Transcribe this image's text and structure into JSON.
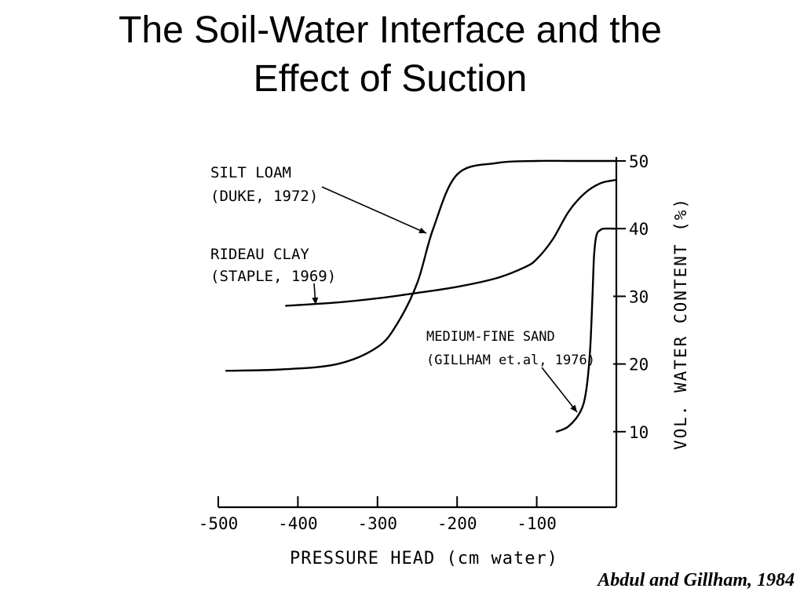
{
  "slide": {
    "title_line1": "The Soil-Water Interface and  the",
    "title_line2": "Effect of Suction",
    "citation": "Abdul and Gillham, 1984"
  },
  "chart_data": {
    "type": "line",
    "xlabel": "PRESSURE HEAD (cm water)",
    "ylabel": "VOL. WATER CONTENT (%)",
    "xlim": [
      -500,
      0
    ],
    "ylim": [
      0,
      50
    ],
    "x_ticks": [
      -500,
      -400,
      -300,
      -200,
      -100
    ],
    "x_tick_labels": [
      "-500",
      "-400",
      "-300",
      "-200",
      "-100"
    ],
    "y_ticks": [
      10,
      20,
      30,
      40,
      50
    ],
    "y_tick_labels": [
      "10",
      "20",
      "30",
      "40",
      "50"
    ],
    "grid": false,
    "legend": "none",
    "series": [
      {
        "label_lines": [
          "SILT LOAM",
          "(DUKE, 1972)"
        ],
        "x": [
          -490,
          -420,
          -350,
          -300,
          -275,
          -250,
          -230,
          -200,
          -150,
          -100,
          -50,
          0
        ],
        "y": [
          19,
          19.2,
          20,
          22.5,
          26,
          32,
          40,
          48,
          49.7,
          50,
          50,
          50
        ]
      },
      {
        "label_lines": [
          "RIDEAU CLAY",
          "(STAPLE, 1969)"
        ],
        "x": [
          -415,
          -350,
          -300,
          -250,
          -200,
          -150,
          -115,
          -100,
          -80,
          -60,
          -40,
          -20,
          0
        ],
        "y": [
          28.6,
          29.1,
          29.7,
          30.5,
          31.4,
          32.7,
          34.3,
          35.5,
          38.4,
          42.5,
          45.2,
          46.7,
          47.2
        ]
      },
      {
        "label_lines": [
          "MEDIUM-FINE SAND",
          "(GILLHAM et.al, 1976)"
        ],
        "x": [
          -75,
          -60,
          -45,
          -38,
          -33,
          -30,
          -28,
          -25,
          -20,
          -15,
          0
        ],
        "y": [
          10,
          10.8,
          13,
          16,
          22,
          30,
          36,
          39,
          39.8,
          40,
          40
        ]
      }
    ]
  }
}
